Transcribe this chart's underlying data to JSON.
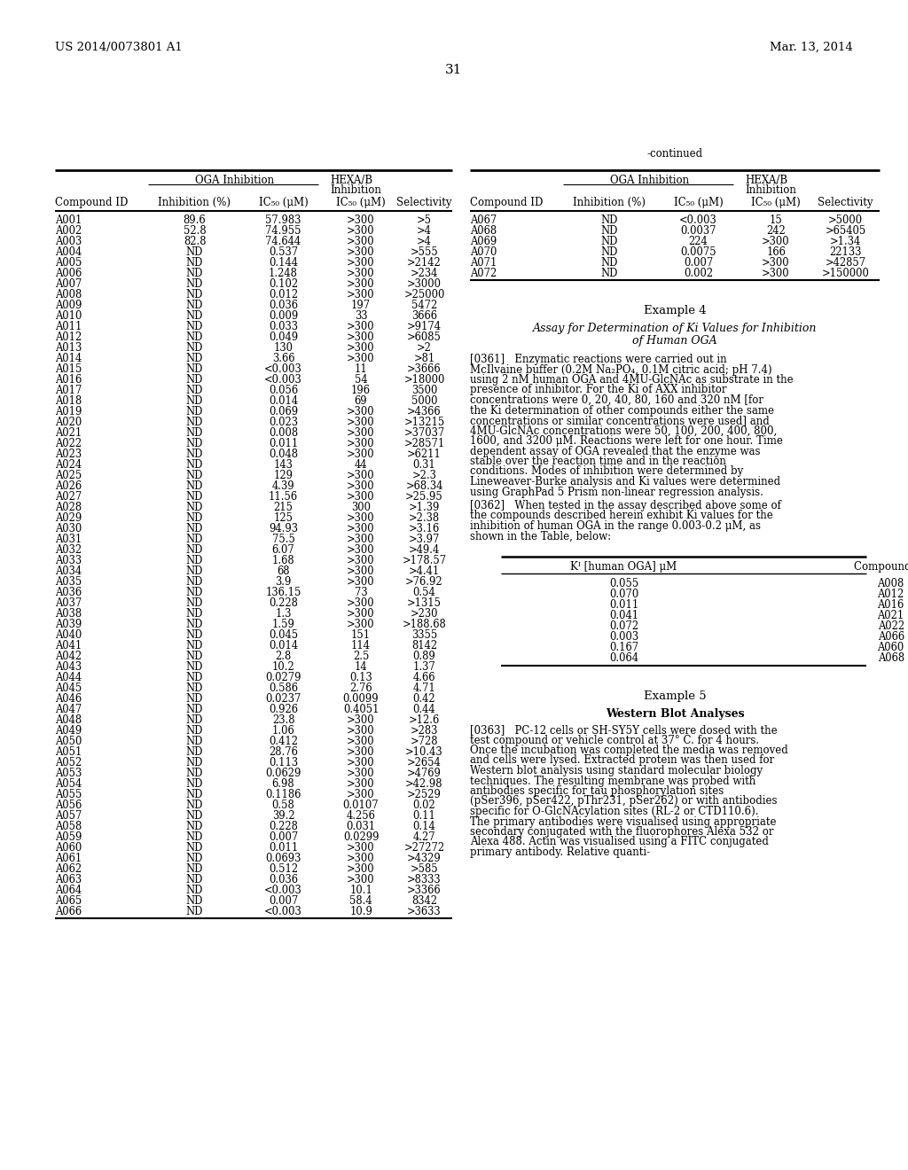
{
  "header_left": "US 2014/0073801 A1",
  "header_right": "Mar. 13, 2014",
  "page_number": "31",
  "left_table": {
    "rows": [
      [
        "A001",
        "89.6",
        "57.983",
        ">300",
        ">5"
      ],
      [
        "A002",
        "52.8",
        "74.955",
        ">300",
        ">4"
      ],
      [
        "A003",
        "82.8",
        "74.644",
        ">300",
        ">4"
      ],
      [
        "A004",
        "ND",
        "0.537",
        ">300",
        ">555"
      ],
      [
        "A005",
        "ND",
        "0.144",
        ">300",
        ">2142"
      ],
      [
        "A006",
        "ND",
        "1.248",
        ">300",
        ">234"
      ],
      [
        "A007",
        "ND",
        "0.102",
        ">300",
        ">3000"
      ],
      [
        "A008",
        "ND",
        "0.012",
        ">300",
        ">25000"
      ],
      [
        "A009",
        "ND",
        "0.036",
        "197",
        "5472"
      ],
      [
        "A010",
        "ND",
        "0.009",
        "33",
        "3666"
      ],
      [
        "A011",
        "ND",
        "0.033",
        ">300",
        ">9174"
      ],
      [
        "A012",
        "ND",
        "0.049",
        ">300",
        ">6085"
      ],
      [
        "A013",
        "ND",
        "130",
        ">300",
        ">2"
      ],
      [
        "A014",
        "ND",
        "3.66",
        ">300",
        ">81"
      ],
      [
        "A015",
        "ND",
        "<0.003",
        "11",
        ">3666"
      ],
      [
        "A016",
        "ND",
        "<0.003",
        "54",
        ">18000"
      ],
      [
        "A017",
        "ND",
        "0.056",
        "196",
        "3500"
      ],
      [
        "A018",
        "ND",
        "0.014",
        "69",
        "5000"
      ],
      [
        "A019",
        "ND",
        "0.069",
        ">300",
        ">4366"
      ],
      [
        "A020",
        "ND",
        "0.023",
        ">300",
        ">13215"
      ],
      [
        "A021",
        "ND",
        "0.008",
        ">300",
        ">37037"
      ],
      [
        "A022",
        "ND",
        "0.011",
        ">300",
        ">28571"
      ],
      [
        "A023",
        "ND",
        "0.048",
        ">300",
        ">6211"
      ],
      [
        "A024",
        "ND",
        "143",
        "44",
        "0.31"
      ],
      [
        "A025",
        "ND",
        "129",
        ">300",
        ">2.3"
      ],
      [
        "A026",
        "ND",
        "4.39",
        ">300",
        ">68.34"
      ],
      [
        "A027",
        "ND",
        "11.56",
        ">300",
        ">25.95"
      ],
      [
        "A028",
        "ND",
        "215",
        "300",
        ">1.39"
      ],
      [
        "A029",
        "ND",
        "125",
        ">300",
        ">2.38"
      ],
      [
        "A030",
        "ND",
        "94.93",
        ">300",
        ">3.16"
      ],
      [
        "A031",
        "ND",
        "75.5",
        ">300",
        ">3.97"
      ],
      [
        "A032",
        "ND",
        "6.07",
        ">300",
        ">49.4"
      ],
      [
        "A033",
        "ND",
        "1.68",
        ">300",
        ">178.57"
      ],
      [
        "A034",
        "ND",
        "68",
        ">300",
        ">4.41"
      ],
      [
        "A035",
        "ND",
        "3.9",
        ">300",
        ">76.92"
      ],
      [
        "A036",
        "ND",
        "136.15",
        "73",
        "0.54"
      ],
      [
        "A037",
        "ND",
        "0.228",
        ">300",
        ">1315"
      ],
      [
        "A038",
        "ND",
        "1.3",
        ">300",
        ">230"
      ],
      [
        "A039",
        "ND",
        "1.59",
        ">300",
        ">188.68"
      ],
      [
        "A040",
        "ND",
        "0.045",
        "151",
        "3355"
      ],
      [
        "A041",
        "ND",
        "0.014",
        "114",
        "8142"
      ],
      [
        "A042",
        "ND",
        "2.8",
        "2.5",
        "0.89"
      ],
      [
        "A043",
        "ND",
        "10.2",
        "14",
        "1.37"
      ],
      [
        "A044",
        "ND",
        "0.0279",
        "0.13",
        "4.66"
      ],
      [
        "A045",
        "ND",
        "0.586",
        "2.76",
        "4.71"
      ],
      [
        "A046",
        "ND",
        "0.0237",
        "0.0099",
        "0.42"
      ],
      [
        "A047",
        "ND",
        "0.926",
        "0.4051",
        "0.44"
      ],
      [
        "A048",
        "ND",
        "23.8",
        ">300",
        ">12.6"
      ],
      [
        "A049",
        "ND",
        "1.06",
        ">300",
        ">283"
      ],
      [
        "A050",
        "ND",
        "0.412",
        ">300",
        ">728"
      ],
      [
        "A051",
        "ND",
        "28.76",
        ">300",
        ">10.43"
      ],
      [
        "A052",
        "ND",
        "0.113",
        ">300",
        ">2654"
      ],
      [
        "A053",
        "ND",
        "0.0629",
        ">300",
        ">4769"
      ],
      [
        "A054",
        "ND",
        "6.98",
        ">300",
        ">42.98"
      ],
      [
        "A055",
        "ND",
        "0.1186",
        ">300",
        ">2529"
      ],
      [
        "A056",
        "ND",
        "0.58",
        "0.0107",
        "0.02"
      ],
      [
        "A057",
        "ND",
        "39.2",
        "4.256",
        "0.11"
      ],
      [
        "A058",
        "ND",
        "0.228",
        "0.031",
        "0.14"
      ],
      [
        "A059",
        "ND",
        "0.007",
        "0.0299",
        "4.27"
      ],
      [
        "A060",
        "ND",
        "0.011",
        ">300",
        ">27272"
      ],
      [
        "A061",
        "ND",
        "0.0693",
        ">300",
        ">4329"
      ],
      [
        "A062",
        "ND",
        "0.512",
        ">300",
        ">585"
      ],
      [
        "A063",
        "ND",
        "0.036",
        ">300",
        ">8333"
      ],
      [
        "A064",
        "ND",
        "<0.003",
        "10.1",
        ">3366"
      ],
      [
        "A065",
        "ND",
        "0.007",
        "58.4",
        "8342"
      ],
      [
        "A066",
        "ND",
        "<0.003",
        "10.9",
        ">3633"
      ]
    ]
  },
  "right_table": {
    "rows": [
      [
        "A067",
        "ND",
        "<0.003",
        "15",
        ">5000"
      ],
      [
        "A068",
        "ND",
        "0.0037",
        "242",
        ">65405"
      ],
      [
        "A069",
        "ND",
        "224",
        ">300",
        ">1.34"
      ],
      [
        "A070",
        "ND",
        "0.0075",
        "166",
        "22133"
      ],
      [
        "A071",
        "ND",
        "0.007",
        ">300",
        ">42857"
      ],
      [
        "A072",
        "ND",
        "0.002",
        ">300",
        ">150000"
      ]
    ]
  },
  "example4_title": "Example 4",
  "example4_subtitle_line1": "Assay for Determination of Ki Values for Inhibition",
  "example4_subtitle_line2": "of Human OGA",
  "example4_text": "[0361]   Enzymatic reactions were carried out in McIlvaine buffer (0.2M Na₂PO₄, 0.1M citric acid; pH 7.4) using 2 nM human OGA and 4MU-GlcNAc as substrate in the presence of inhibitor. For the Ki of AXX inhibitor concentrations were 0, 20, 40, 80, 160 and 320 nM [for the Ki determination of other compounds either the same concentrations or similar concentrations were used] and 4MU-GlcNAc concentrations were 50, 100, 200, 400, 800, 1600, and 3200 μM. Reactions were left for one hour. Time dependent assay of OGA revealed that the enzyme was stable over the reaction time and in the reaction conditions. Modes of inhibition were determined by Lineweaver-Burke analysis and Ki values were determined using GraphPad 5 Prism non-linear regression analysis.",
  "example4_text2": "[0362]   When tested in the assay described above some of the compounds described herein exhibit Ki values for the inhibition of human OGA in the range 0.003-0.2 μM, as shown in the Table, below:",
  "ki_table": {
    "rows": [
      [
        "A008",
        "0.055"
      ],
      [
        "A012",
        "0.070"
      ],
      [
        "A016",
        "0.011"
      ],
      [
        "A021",
        "0.041"
      ],
      [
        "A022",
        "0.072"
      ],
      [
        "A066",
        "0.003"
      ],
      [
        "A060",
        "0.167"
      ],
      [
        "A068",
        "0.064"
      ]
    ]
  },
  "example5_title": "Example 5",
  "example5_subtitle": "Western Blot Analyses",
  "example5_text": "[0363]   PC-12 cells or SH-SY5Y cells were dosed with the test compound or vehicle control at 37° C. for 4 hours. Once the incubation was completed the media was removed and cells were lysed. Extracted protein was then used for Western blot analysis using standard molecular biology techniques. The resulting membrane was probed with antibodies specific for tau phosphorylation sites (pSer396, pSer422, pThr231, pSer262) or with antibodies specific for O-GlcNAcylation sites (RL-2 or CTD110.6). The primary antibodies were visualised using appropriate secondary conjugated with the fluorophores Alexa 532 or Alexa 488. Actin was visualised using a FITC conjugated primary antibody. Relative quanti-"
}
